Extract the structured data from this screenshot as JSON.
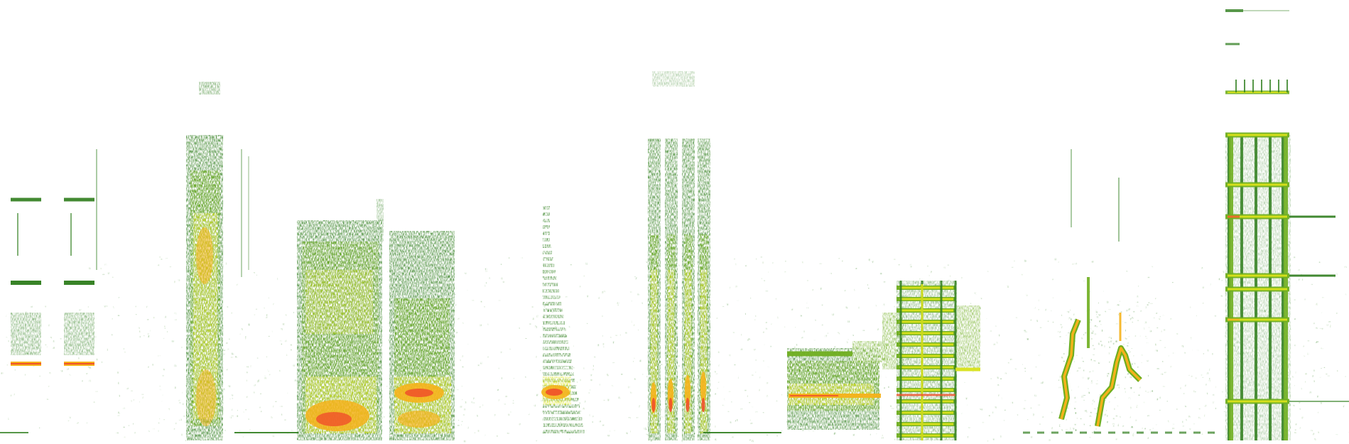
{
  "image": {
    "kind": "spectrogram",
    "background": "#ffffff",
    "palette": {
      "low": "#2e7d1c",
      "mid_low": "#6fae20",
      "mid": "#d9e21a",
      "high": "#f5b21a",
      "peak": "#f0502a"
    }
  }
}
